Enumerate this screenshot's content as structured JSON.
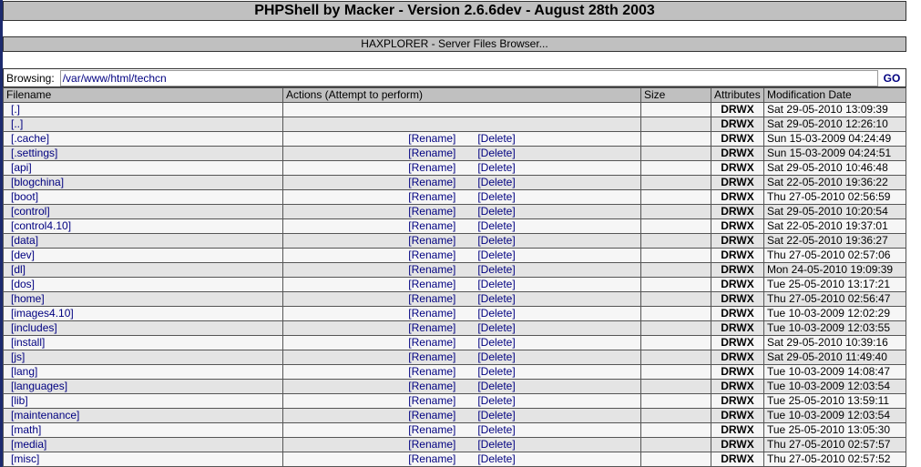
{
  "title": "PHPShell by Macker - Version 2.6.6dev - August 28th 2003",
  "subtitle": "HAXPLORER - Server Files Browser...",
  "browse": {
    "label": "Browsing:",
    "path": "/var/www/html/techcn",
    "go": "GO"
  },
  "columns": [
    "Filename",
    "Actions (Attempt to perform)",
    "Size",
    "Attributes",
    "Modification Date"
  ],
  "action_labels": {
    "rename": "[Rename]",
    "delete": "[Delete]"
  },
  "rows": [
    {
      "name": "[.]",
      "actions": false,
      "attr": "DRWX",
      "date": "Sat 29-05-2010 13:09:39"
    },
    {
      "name": "[..]",
      "actions": false,
      "attr": "DRWX",
      "date": "Sat 29-05-2010 12:26:10"
    },
    {
      "name": "[.cache]",
      "actions": true,
      "attr": "DRWX",
      "date": "Sun 15-03-2009 04:24:49"
    },
    {
      "name": "[.settings]",
      "actions": true,
      "attr": "DRWX",
      "date": "Sun 15-03-2009 04:24:51"
    },
    {
      "name": "[api]",
      "actions": true,
      "attr": "DRWX",
      "date": "Sat 29-05-2010 10:46:48"
    },
    {
      "name": "[blogchina]",
      "actions": true,
      "attr": "DRWX",
      "date": "Sat 22-05-2010 19:36:22"
    },
    {
      "name": "[boot]",
      "actions": true,
      "attr": "DRWX",
      "date": "Thu 27-05-2010 02:56:59"
    },
    {
      "name": "[control]",
      "actions": true,
      "attr": "DRWX",
      "date": "Sat 29-05-2010 10:20:54"
    },
    {
      "name": "[control4.10]",
      "actions": true,
      "attr": "DRWX",
      "date": "Sat 22-05-2010 19:37:01"
    },
    {
      "name": "[data]",
      "actions": true,
      "attr": "DRWX",
      "date": "Sat 22-05-2010 19:36:27"
    },
    {
      "name": "[dev]",
      "actions": true,
      "attr": "DRWX",
      "date": "Thu 27-05-2010 02:57:06"
    },
    {
      "name": "[dl]",
      "actions": true,
      "attr": "DRWX",
      "date": "Mon 24-05-2010 19:09:39"
    },
    {
      "name": "[dos]",
      "actions": true,
      "attr": "DRWX",
      "date": "Tue 25-05-2010 13:17:21"
    },
    {
      "name": "[home]",
      "actions": true,
      "attr": "DRWX",
      "date": "Thu 27-05-2010 02:56:47"
    },
    {
      "name": "[images4.10]",
      "actions": true,
      "attr": "DRWX",
      "date": "Tue 10-03-2009 12:02:29"
    },
    {
      "name": "[includes]",
      "actions": true,
      "attr": "DRWX",
      "date": "Tue 10-03-2009 12:03:55"
    },
    {
      "name": "[install]",
      "actions": true,
      "attr": "DRWX",
      "date": "Sat 29-05-2010 10:39:16"
    },
    {
      "name": "[js]",
      "actions": true,
      "attr": "DRWX",
      "date": "Sat 29-05-2010 11:49:40"
    },
    {
      "name": "[lang]",
      "actions": true,
      "attr": "DRWX",
      "date": "Tue 10-03-2009 14:08:47"
    },
    {
      "name": "[languages]",
      "actions": true,
      "attr": "DRWX",
      "date": "Tue 10-03-2009 12:03:54"
    },
    {
      "name": "[lib]",
      "actions": true,
      "attr": "DRWX",
      "date": "Tue 25-05-2010 13:59:11"
    },
    {
      "name": "[maintenance]",
      "actions": true,
      "attr": "DRWX",
      "date": "Tue 10-03-2009 12:03:54"
    },
    {
      "name": "[math]",
      "actions": true,
      "attr": "DRWX",
      "date": "Tue 25-05-2010 13:05:30"
    },
    {
      "name": "[media]",
      "actions": true,
      "attr": "DRWX",
      "date": "Thu 27-05-2010 02:57:57"
    },
    {
      "name": "[misc]",
      "actions": true,
      "attr": "DRWX",
      "date": "Thu 27-05-2010 02:57:52"
    }
  ]
}
